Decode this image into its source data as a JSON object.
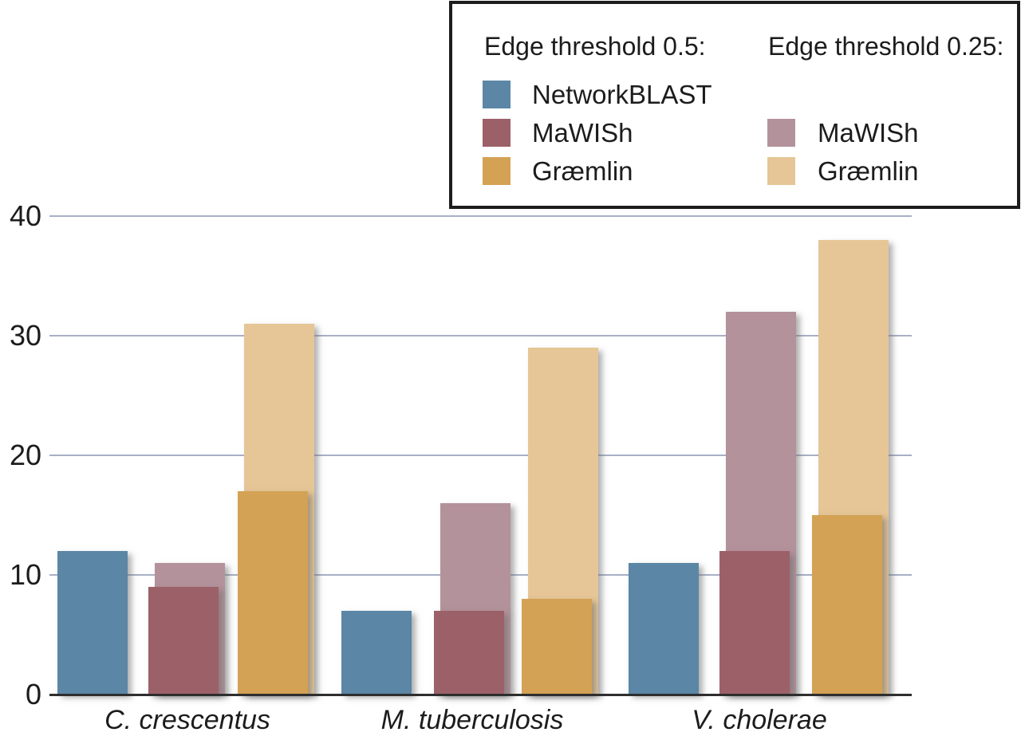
{
  "legend": {
    "columns": [
      {
        "title": "Edge threshold 0.5:",
        "items": [
          {
            "label": "NetworkBLAST",
            "color": "#5b86a6"
          },
          {
            "label": "MaWISh",
            "color": "#9c6168"
          },
          {
            "label": "Græmlin",
            "color": "#d4a254"
          }
        ]
      },
      {
        "title": "Edge threshold 0.25:",
        "items": [
          {
            "label": "MaWISh",
            "color": "#b4929b"
          },
          {
            "label": "Græmlin",
            "color": "#e6c696"
          }
        ]
      }
    ]
  },
  "chart_data": {
    "type": "bar",
    "title": "",
    "categories": [
      "C. crescentus",
      "M. tuberculosis",
      "V. cholerae"
    ],
    "series": [
      {
        "name": "NetworkBLAST",
        "threshold": "0.5",
        "color": "#5b86a6",
        "values": [
          12,
          7,
          11
        ]
      },
      {
        "name": "MaWISh",
        "threshold": "0.5",
        "color": "#9c6168",
        "values": [
          9,
          7,
          12
        ]
      },
      {
        "name": "MaWISh",
        "threshold": "0.25",
        "color": "#b4929b",
        "values": [
          11,
          16,
          32
        ]
      },
      {
        "name": "Græmlin",
        "threshold": "0.5",
        "color": "#d4a254",
        "values": [
          17,
          8,
          15
        ]
      },
      {
        "name": "Græmlin",
        "threshold": "0.25",
        "color": "#e6c696",
        "values": [
          31,
          29,
          38
        ]
      }
    ],
    "ylim": [
      0,
      40
    ],
    "yticks": [
      0,
      10,
      20,
      30,
      40
    ],
    "grid": "horizontal-only",
    "legend_position": "top-right",
    "bar_style": "paired-overlap: threshold-0.25 bar drawn behind and offset right of threshold-0.5 bar"
  }
}
